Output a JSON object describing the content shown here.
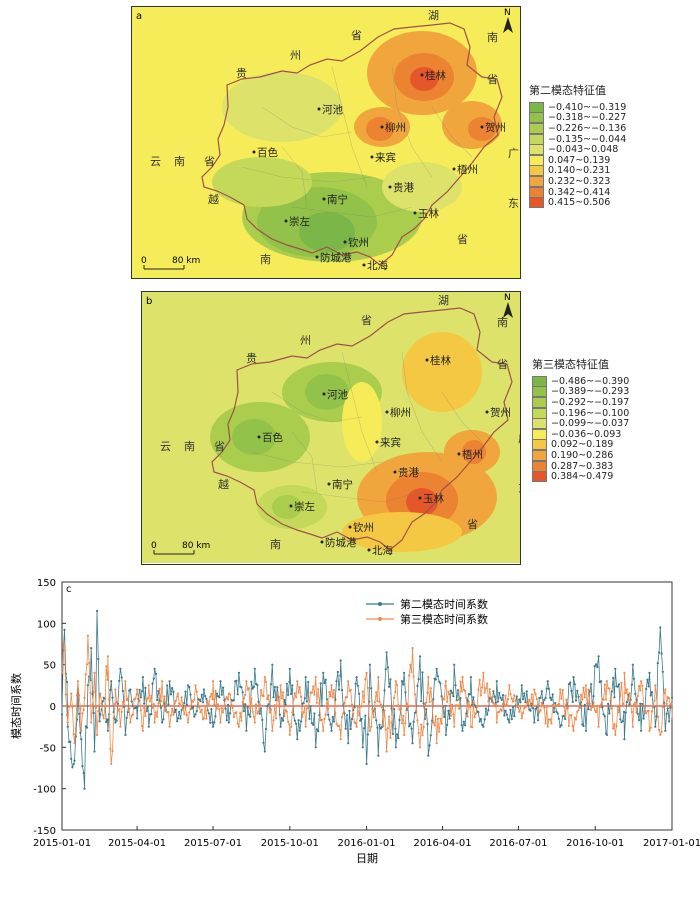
{
  "figure": {
    "panel_a": {
      "label": "a",
      "north": "N",
      "scale_label": "80 km",
      "scale_zero": "0",
      "legend_title": "第二模态特征值",
      "legend": [
        {
          "range": "−0.410~−0.319",
          "color": "#7ab648"
        },
        {
          "range": "−0.318~−0.227",
          "color": "#92c24a"
        },
        {
          "range": "−0.226~−0.136",
          "color": "#aacd4e"
        },
        {
          "range": "−0.135~−0.044",
          "color": "#c4d95a"
        },
        {
          "range": "−0.043~0.048",
          "color": "#dde36a"
        },
        {
          "range": "0.047~0.139",
          "color": "#f6ec5a"
        },
        {
          "range": "0.140~0.231",
          "color": "#f4c843"
        },
        {
          "range": "0.232~0.323",
          "color": "#f0a63c"
        },
        {
          "range": "0.342~0.414",
          "color": "#ec8332"
        },
        {
          "range": "0.415~0.506",
          "color": "#e4572b"
        }
      ],
      "cities": [
        "桂林",
        "河池",
        "柳州",
        "贺州",
        "百色",
        "来宾",
        "梧州",
        "南宁",
        "贵港",
        "崇左",
        "玉林",
        "钦州",
        "防城港",
        "北海"
      ],
      "regions": [
        "湖",
        "南",
        "省",
        "贵",
        "州",
        "省",
        "广",
        "东",
        "省",
        "云",
        "南",
        "省",
        "越",
        "南"
      ]
    },
    "panel_b": {
      "label": "b",
      "north": "N",
      "scale_label": "80 km",
      "scale_zero": "0",
      "legend_title": "第三模态特征值",
      "legend": [
        {
          "range": "−0.486~−0.390",
          "color": "#7ab648"
        },
        {
          "range": "−0.389~−0.293",
          "color": "#92c24a"
        },
        {
          "range": "−0.292~−0.197",
          "color": "#aacd4e"
        },
        {
          "range": "−0.196~−0.100",
          "color": "#c4d95a"
        },
        {
          "range": "−0.099~−0.037",
          "color": "#dde36a"
        },
        {
          "range": "−0.036~0.093",
          "color": "#f6ec5a"
        },
        {
          "range": "0.092~0.189",
          "color": "#f4c843"
        },
        {
          "range": "0.190~0.286",
          "color": "#f0a63c"
        },
        {
          "range": "0.287~0.383",
          "color": "#ec8332"
        },
        {
          "range": "0.384~0.479",
          "color": "#e4572b"
        }
      ],
      "cities": [
        "桂林",
        "河池",
        "柳州",
        "贺州",
        "百色",
        "来宾",
        "梧州",
        "南宁",
        "贵港",
        "崇左",
        "玉林",
        "钦州",
        "防城港",
        "北海"
      ],
      "regions": [
        "湖",
        "南",
        "省",
        "贵",
        "州",
        "省",
        "广",
        "东",
        "省",
        "云",
        "南",
        "省",
        "越",
        "南"
      ]
    }
  },
  "chart_data": {
    "type": "line",
    "title": "",
    "label": "c",
    "xlabel": "日期",
    "ylabel": "模态时间系数",
    "ylim": [
      -150,
      150
    ],
    "yticks": [
      150,
      100,
      50,
      0,
      -50,
      -100,
      -150
    ],
    "xticks": [
      "2015-01-01",
      "2015-04-01",
      "2015-07-01",
      "2015-10-01",
      "2016-01-01",
      "2016-04-01",
      "2016-07-01",
      "2016-10-01",
      "2017-01-01"
    ],
    "xrange": [
      "2015-01-01",
      "2017-01-01"
    ],
    "series": [
      {
        "name": "第二模态时间系数",
        "color": "#3b7a8c",
        "anchors": [
          [
            "2015-01-01",
            -10
          ],
          [
            "2015-01-04",
            92
          ],
          [
            "2015-01-08",
            -25
          ],
          [
            "2015-01-12",
            -64
          ],
          [
            "2015-01-16",
            -66
          ],
          [
            "2015-01-20",
            20
          ],
          [
            "2015-01-24",
            -40
          ],
          [
            "2015-01-28",
            -100
          ],
          [
            "2015-02-01",
            25
          ],
          [
            "2015-02-05",
            70
          ],
          [
            "2015-02-09",
            -55
          ],
          [
            "2015-02-12",
            115
          ],
          [
            "2015-02-16",
            -10
          ],
          [
            "2015-02-20",
            10
          ],
          [
            "2015-02-25",
            -30
          ],
          [
            "2015-03-01",
            30
          ],
          [
            "2015-03-06",
            -20
          ],
          [
            "2015-03-12",
            45
          ],
          [
            "2015-03-18",
            -35
          ],
          [
            "2015-03-24",
            20
          ],
          [
            "2015-04-01",
            -15
          ],
          [
            "2015-04-08",
            35
          ],
          [
            "2015-04-15",
            -25
          ],
          [
            "2015-04-22",
            45
          ],
          [
            "2015-05-01",
            -20
          ],
          [
            "2015-05-10",
            30
          ],
          [
            "2015-05-20",
            -15
          ],
          [
            "2015-06-01",
            25
          ],
          [
            "2015-06-10",
            -10
          ],
          [
            "2015-06-20",
            20
          ],
          [
            "2015-07-01",
            -25
          ],
          [
            "2015-07-10",
            30
          ],
          [
            "2015-07-20",
            -20
          ],
          [
            "2015-08-01",
            40
          ],
          [
            "2015-08-10",
            -30
          ],
          [
            "2015-08-20",
            45
          ],
          [
            "2015-09-01",
            -55
          ],
          [
            "2015-09-10",
            50
          ],
          [
            "2015-09-20",
            -25
          ],
          [
            "2015-10-01",
            45
          ],
          [
            "2015-10-10",
            -40
          ],
          [
            "2015-10-20",
            35
          ],
          [
            "2015-11-01",
            -50
          ],
          [
            "2015-11-10",
            40
          ],
          [
            "2015-11-20",
            -30
          ],
          [
            "2015-12-01",
            55
          ],
          [
            "2015-12-10",
            -45
          ],
          [
            "2015-12-20",
            35
          ],
          [
            "2016-01-01",
            -70
          ],
          [
            "2016-01-05",
            50
          ],
          [
            "2016-01-15",
            -60
          ],
          [
            "2016-01-25",
            65
          ],
          [
            "2016-02-05",
            -50
          ],
          [
            "2016-02-15",
            40
          ],
          [
            "2016-02-25",
            -45
          ],
          [
            "2016-03-05",
            60
          ],
          [
            "2016-03-15",
            -60
          ],
          [
            "2016-03-25",
            45
          ],
          [
            "2016-04-05",
            -35
          ],
          [
            "2016-04-15",
            50
          ],
          [
            "2016-04-25",
            -30
          ],
          [
            "2016-05-05",
            35
          ],
          [
            "2016-05-20",
            -25
          ],
          [
            "2016-06-05",
            30
          ],
          [
            "2016-06-20",
            -20
          ],
          [
            "2016-07-05",
            25
          ],
          [
            "2016-07-20",
            -20
          ],
          [
            "2016-08-05",
            30
          ],
          [
            "2016-08-20",
            -25
          ],
          [
            "2016-09-05",
            35
          ],
          [
            "2016-09-20",
            -30
          ],
          [
            "2016-10-05",
            60
          ],
          [
            "2016-10-15",
            -35
          ],
          [
            "2016-10-25",
            45
          ],
          [
            "2016-11-05",
            -40
          ],
          [
            "2016-11-15",
            50
          ],
          [
            "2016-11-25",
            -30
          ],
          [
            "2016-12-05",
            40
          ],
          [
            "2016-12-12",
            -25
          ],
          [
            "2016-12-18",
            95
          ],
          [
            "2016-12-24",
            -30
          ],
          [
            "2017-01-01",
            10
          ]
        ]
      },
      {
        "name": "第三模态时间系数",
        "color": "#f08a4b",
        "anchors": [
          [
            "2015-01-01",
            40
          ],
          [
            "2015-01-04",
            75
          ],
          [
            "2015-01-08",
            -20
          ],
          [
            "2015-01-12",
            15
          ],
          [
            "2015-01-16",
            -45
          ],
          [
            "2015-01-20",
            30
          ],
          [
            "2015-01-24",
            -30
          ],
          [
            "2015-01-28",
            10
          ],
          [
            "2015-02-01",
            85
          ],
          [
            "2015-02-05",
            -20
          ],
          [
            "2015-02-09",
            40
          ],
          [
            "2015-02-12",
            -35
          ],
          [
            "2015-02-16",
            15
          ],
          [
            "2015-02-20",
            -15
          ],
          [
            "2015-02-25",
            60
          ],
          [
            "2015-03-01",
            -70
          ],
          [
            "2015-03-06",
            20
          ],
          [
            "2015-03-12",
            -25
          ],
          [
            "2015-03-18",
            30
          ],
          [
            "2015-03-24",
            -20
          ],
          [
            "2015-04-01",
            20
          ],
          [
            "2015-04-08",
            -30
          ],
          [
            "2015-04-15",
            25
          ],
          [
            "2015-04-22",
            -20
          ],
          [
            "2015-05-01",
            30
          ],
          [
            "2015-05-10",
            -25
          ],
          [
            "2015-05-20",
            15
          ],
          [
            "2015-06-01",
            -20
          ],
          [
            "2015-06-10",
            25
          ],
          [
            "2015-06-20",
            -15
          ],
          [
            "2015-07-01",
            30
          ],
          [
            "2015-07-10",
            -20
          ],
          [
            "2015-07-20",
            15
          ],
          [
            "2015-08-01",
            -25
          ],
          [
            "2015-08-10",
            30
          ],
          [
            "2015-08-20",
            -20
          ],
          [
            "2015-09-01",
            35
          ],
          [
            "2015-09-10",
            -30
          ],
          [
            "2015-09-20",
            25
          ],
          [
            "2015-10-01",
            -35
          ],
          [
            "2015-10-10",
            30
          ],
          [
            "2015-10-20",
            -25
          ],
          [
            "2015-11-01",
            35
          ],
          [
            "2015-11-10",
            -30
          ],
          [
            "2015-11-20",
            25
          ],
          [
            "2015-12-01",
            -40
          ],
          [
            "2015-12-10",
            30
          ],
          [
            "2015-12-20",
            -25
          ],
          [
            "2016-01-01",
            40
          ],
          [
            "2016-01-05",
            -30
          ],
          [
            "2016-01-15",
            35
          ],
          [
            "2016-01-25",
            -55
          ],
          [
            "2016-02-05",
            30
          ],
          [
            "2016-02-15",
            -35
          ],
          [
            "2016-02-25",
            70
          ],
          [
            "2016-03-05",
            -50
          ],
          [
            "2016-03-15",
            35
          ],
          [
            "2016-03-25",
            -45
          ],
          [
            "2016-04-05",
            30
          ],
          [
            "2016-04-15",
            -25
          ],
          [
            "2016-04-25",
            35
          ],
          [
            "2016-05-05",
            -25
          ],
          [
            "2016-05-20",
            40
          ],
          [
            "2016-06-05",
            -20
          ],
          [
            "2016-06-20",
            25
          ],
          [
            "2016-07-05",
            -15
          ],
          [
            "2016-07-20",
            20
          ],
          [
            "2016-08-05",
            -25
          ],
          [
            "2016-08-20",
            20
          ],
          [
            "2016-09-05",
            -30
          ],
          [
            "2016-09-20",
            25
          ],
          [
            "2016-10-05",
            -25
          ],
          [
            "2016-10-15",
            30
          ],
          [
            "2016-10-25",
            -35
          ],
          [
            "2016-11-05",
            40
          ],
          [
            "2016-11-15",
            -25
          ],
          [
            "2016-11-25",
            30
          ],
          [
            "2016-12-05",
            -30
          ],
          [
            "2016-12-12",
            25
          ],
          [
            "2016-12-18",
            -35
          ],
          [
            "2016-12-24",
            20
          ],
          [
            "2017-01-01",
            -15
          ]
        ]
      }
    ]
  }
}
